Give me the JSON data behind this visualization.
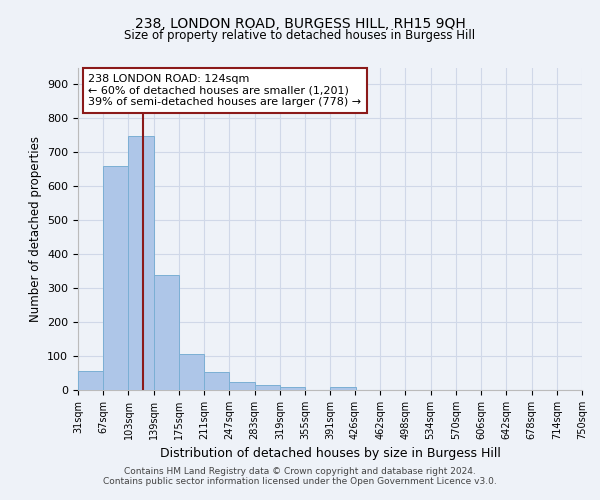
{
  "title1": "238, LONDON ROAD, BURGESS HILL, RH15 9QH",
  "title2": "Size of property relative to detached houses in Burgess Hill",
  "xlabel": "Distribution of detached houses by size in Burgess Hill",
  "ylabel": "Number of detached properties",
  "footnote1": "Contains HM Land Registry data © Crown copyright and database right 2024.",
  "footnote2": "Contains public sector information licensed under the Open Government Licence v3.0.",
  "annotation_title": "238 LONDON ROAD: 124sqm",
  "annotation_line1": "← 60% of detached houses are smaller (1,201)",
  "annotation_line2": "39% of semi-detached houses are larger (778) →",
  "bin_edges": [
    31,
    67,
    103,
    139,
    175,
    211,
    247,
    283,
    319,
    355,
    391,
    426,
    462,
    498,
    534,
    570,
    606,
    642,
    678,
    714,
    750
  ],
  "bar_heights": [
    55,
    660,
    748,
    338,
    107,
    52,
    24,
    14,
    10,
    0,
    10,
    0,
    0,
    0,
    0,
    0,
    0,
    0,
    0,
    0
  ],
  "bar_color": "#aec6e8",
  "bar_edge_color": "#7bafd4",
  "vline_color": "#8b1a1a",
  "vline_x": 124,
  "annotation_box_color": "#8b1a1a",
  "annotation_fill": "white",
  "grid_color": "#d0d8e8",
  "bg_color": "#eef2f8",
  "ylim": [
    0,
    950
  ],
  "yticks": [
    0,
    100,
    200,
    300,
    400,
    500,
    600,
    700,
    800,
    900
  ]
}
